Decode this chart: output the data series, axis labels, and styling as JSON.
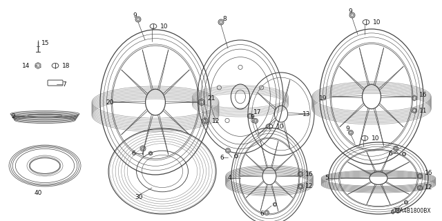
{
  "bg_color": "#ffffff",
  "line_color": "#444444",
  "text_color": "#111111",
  "fig_width": 6.4,
  "fig_height": 3.2,
  "dpi": 100,
  "watermark": "TBA4B1800BX",
  "label_font": 6.5
}
